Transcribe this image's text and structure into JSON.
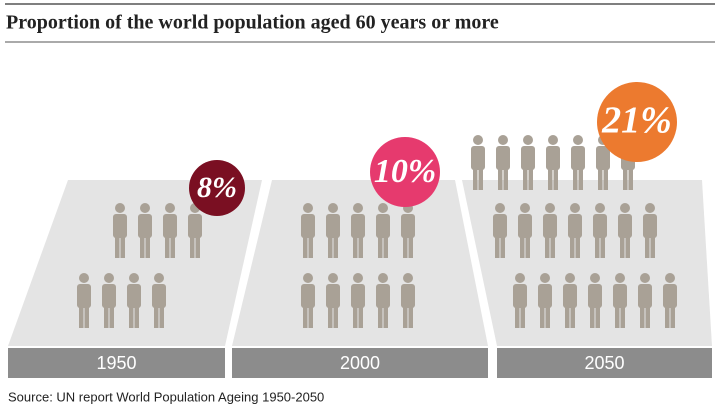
{
  "chart_data": {
    "type": "pictograph",
    "title": "Proportion of the world population aged 60 years or more",
    "categories": [
      "1950",
      "2000",
      "2050"
    ],
    "values": [
      8,
      10,
      21
    ],
    "value_labels": [
      "8%",
      "10%",
      "21%"
    ],
    "colors": [
      "#7a0f22",
      "#e63a6e",
      "#ec7a2f"
    ],
    "source": "Source: UN report World Population Ageing 1950-2050"
  }
}
